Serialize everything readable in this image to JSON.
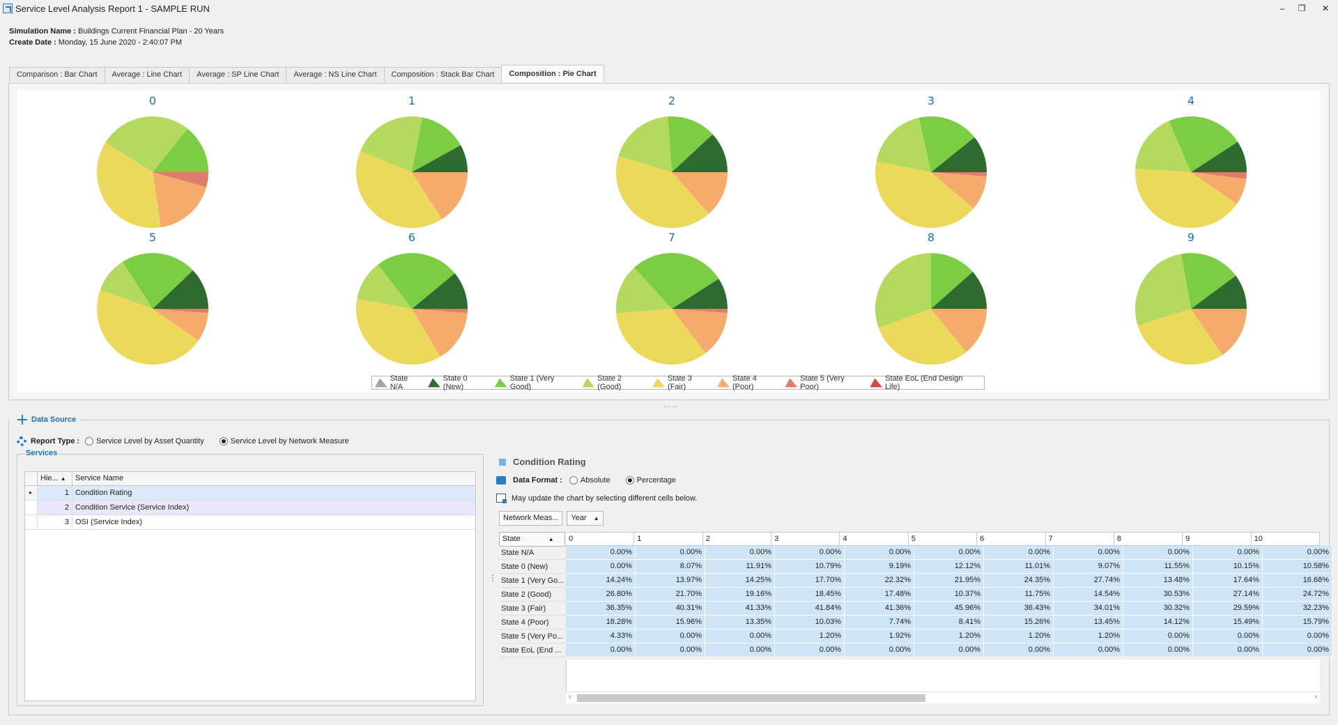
{
  "window": {
    "title": "Service Level Analysis Report 1 - SAMPLE RUN",
    "minimize": "–",
    "restore": "❐",
    "close": "✕"
  },
  "meta": {
    "sim_label": "Simulation Name :",
    "sim_value": "Buildings Current Financial Plan - 20 Years",
    "date_label": "Create Date :",
    "date_value": "Monday, 15 June 2020 - 2:40:07 PM"
  },
  "tabs": [
    {
      "label": "Comparison : Bar Chart"
    },
    {
      "label": "Average : Line Chart"
    },
    {
      "label": "Average : SP Line Chart"
    },
    {
      "label": "Average : NS Line Chart"
    },
    {
      "label": "Composition : Stack Bar Chart"
    },
    {
      "label": "Composition : Pie Chart",
      "active": true
    }
  ],
  "colors": {
    "State N/A": "#a6a6a6",
    "State 0 (New)": "#2e6b2e",
    "State 1 (Very Good)": "#7ccd44",
    "State 2 (Good)": "#b3d95f",
    "State 3 (Fair)": "#ecd95c",
    "State 4 (Poor)": "#f4ab6c",
    "State 5 (Very Poor)": "#e07c6c",
    "State EoL (End Design Life)": "#d8484a"
  },
  "chart_data": {
    "type": "pie",
    "slice_order": [
      "State N/A",
      "State 0 (New)",
      "State 1 (Very Good)",
      "State 2 (Good)",
      "State 3 (Fair)",
      "State 4 (Poor)",
      "State 5 (Very Poor)",
      "State EoL (End Design Life)"
    ],
    "legend": [
      "State N/A",
      "State 0 (New)",
      "State 1 (Very Good)",
      "State 2 (Good)",
      "State 3 (Fair)",
      "State 4 (Poor)",
      "State 5 (Very Poor)",
      "State EoL (End Design Life)"
    ],
    "pies": [
      {
        "title": "0",
        "values": [
          0.0,
          0.0,
          14.24,
          26.8,
          36.35,
          18.28,
          4.33,
          0.0
        ]
      },
      {
        "title": "1",
        "values": [
          0.0,
          8.07,
          13.97,
          21.7,
          40.31,
          15.96,
          0.0,
          0.0
        ]
      },
      {
        "title": "2",
        "values": [
          0.0,
          11.91,
          14.25,
          19.16,
          41.33,
          13.35,
          0.0,
          0.0
        ]
      },
      {
        "title": "3",
        "values": [
          0.0,
          10.79,
          17.7,
          18.45,
          41.84,
          10.03,
          1.2,
          0.0
        ]
      },
      {
        "title": "4",
        "values": [
          0.0,
          9.19,
          22.32,
          17.48,
          41.36,
          7.74,
          1.92,
          0.0
        ]
      },
      {
        "title": "5",
        "values": [
          0.0,
          12.12,
          21.95,
          10.37,
          45.96,
          8.41,
          1.2,
          0.0
        ]
      },
      {
        "title": "6",
        "values": [
          0.0,
          11.01,
          24.35,
          11.75,
          36.43,
          15.26,
          1.2,
          0.0
        ]
      },
      {
        "title": "7",
        "values": [
          0.0,
          9.07,
          27.74,
          14.54,
          34.01,
          13.45,
          1.2,
          0.0
        ]
      },
      {
        "title": "8",
        "values": [
          0.0,
          11.55,
          13.48,
          30.53,
          30.32,
          14.12,
          0.0,
          0.0
        ]
      },
      {
        "title": "9",
        "values": [
          0.0,
          10.15,
          17.64,
          27.14,
          29.59,
          15.49,
          0.0,
          0.0
        ]
      }
    ]
  },
  "data_source": {
    "label": "Data Source",
    "report_type_label": "Report Type :",
    "options": [
      {
        "label": "Service Level by Asset Quantity",
        "selected": false
      },
      {
        "label": "Service Level by Network Measure",
        "selected": true
      }
    ]
  },
  "services": {
    "label": "Services",
    "col_hier": "Hie...",
    "col_name": "Service Name",
    "rows": [
      {
        "num": "1",
        "name": "Condition Rating"
      },
      {
        "num": "2",
        "name": "Condition Service (Service Index)"
      },
      {
        "num": "3",
        "name": "OSI (Service Index)"
      }
    ]
  },
  "pivot": {
    "title": "Condition Rating",
    "format_label": "Data Format :",
    "format_options": [
      {
        "label": "Absolute",
        "selected": false
      },
      {
        "label": "Percentage",
        "selected": true
      }
    ],
    "note": "May update the chart by selecting different cells below.",
    "field_network": "Network Meas...",
    "field_year": "Year",
    "row_header": "State",
    "years": [
      "0",
      "1",
      "2",
      "3",
      "4",
      "5",
      "6",
      "7",
      "8",
      "9",
      "10"
    ],
    "row_labels": [
      "State N/A",
      "State 0 (New)",
      "State 1 (Very Go...",
      "State 2 (Good)",
      "State 3 (Fair)",
      "State 4 (Poor)",
      "State 5 (Very Po...",
      "State EoL (End ..."
    ],
    "cells": [
      [
        "0.00%",
        "0.00%",
        "0.00%",
        "0.00%",
        "0.00%",
        "0.00%",
        "0.00%",
        "0.00%",
        "0.00%",
        "0.00%",
        "0.00%"
      ],
      [
        "0.00%",
        "8.07%",
        "11.91%",
        "10.79%",
        "9.19%",
        "12.12%",
        "11.01%",
        "9.07%",
        "11.55%",
        "10.15%",
        "10.58%"
      ],
      [
        "14.24%",
        "13.97%",
        "14.25%",
        "17.70%",
        "22.32%",
        "21.95%",
        "24.35%",
        "27.74%",
        "13.48%",
        "17.64%",
        "16.68%"
      ],
      [
        "26.80%",
        "21.70%",
        "19.16%",
        "18.45%",
        "17.48%",
        "10.37%",
        "11.75%",
        "14.54%",
        "30.53%",
        "27.14%",
        "24.72%"
      ],
      [
        "36.35%",
        "40.31%",
        "41.33%",
        "41.84%",
        "41.36%",
        "45.96%",
        "36.43%",
        "34.01%",
        "30.32%",
        "29.59%",
        "32.23%"
      ],
      [
        "18.28%",
        "15.96%",
        "13.35%",
        "10.03%",
        "7.74%",
        "8.41%",
        "15.26%",
        "13.45%",
        "14.12%",
        "15.49%",
        "15.79%"
      ],
      [
        "4.33%",
        "0.00%",
        "0.00%",
        "1.20%",
        "1.92%",
        "1.20%",
        "1.20%",
        "1.20%",
        "0.00%",
        "0.00%",
        "0.00%"
      ],
      [
        "0.00%",
        "0.00%",
        "0.00%",
        "0.00%",
        "0.00%",
        "0.00%",
        "0.00%",
        "0.00%",
        "0.00%",
        "0.00%",
        "0.00%"
      ]
    ]
  }
}
